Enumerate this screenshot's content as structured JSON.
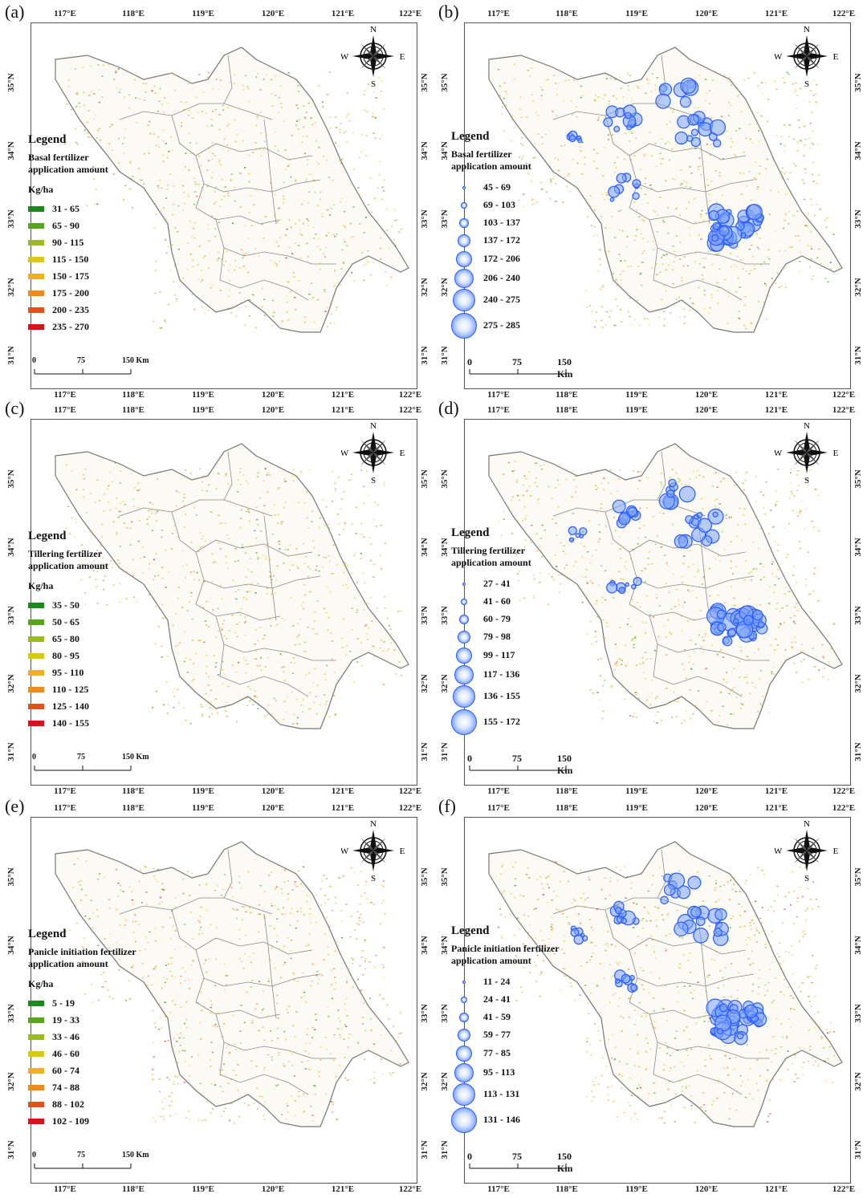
{
  "panels": [
    {
      "label": "(a)",
      "type": "raster",
      "legend_title": "Legend",
      "legend_subtitle": [
        "Basal fertilizer",
        "application amount"
      ],
      "unit": "Kg/ha",
      "classes": [
        "31 - 65",
        "65 - 90",
        "90 - 115",
        "115 - 150",
        "150 - 175",
        "175 - 200",
        "200 - 235",
        "235 - 270"
      ],
      "scale": {
        "zero": "0",
        "mid": "75",
        "end": "150 Km"
      }
    },
    {
      "label": "(b)",
      "type": "bubble",
      "legend_title": "Legend",
      "legend_subtitle": [
        "Basal fertilizer",
        "application amount"
      ],
      "classes": [
        "45 - 69",
        "69 - 103",
        "103 - 137",
        "137 - 172",
        "172 - 206",
        "206 - 240",
        "240 - 275",
        "275 - 285"
      ],
      "scale": {
        "zero": "0",
        "mid": "75",
        "end": "150 Km"
      }
    },
    {
      "label": "(c)",
      "type": "raster",
      "legend_title": "Legend",
      "legend_subtitle": [
        "Tillering fertilizer",
        "application amount"
      ],
      "unit": "Kg/ha",
      "classes": [
        "35 - 50",
        "50 - 65",
        "65 - 80",
        "80 - 95",
        "95 - 110",
        "110 - 125",
        "125 - 140",
        "140 - 155"
      ],
      "scale": {
        "zero": "0",
        "mid": "75",
        "end": "150 Km"
      }
    },
    {
      "label": "(d)",
      "type": "bubble",
      "legend_title": "Legend",
      "legend_subtitle": [
        "Tillering fertilizer",
        "application amount"
      ],
      "classes": [
        "27 - 41",
        "41 - 60",
        "60 - 79",
        "79 - 98",
        "99 - 117",
        "117 - 136",
        "136 - 155",
        "155 - 172"
      ],
      "scale": {
        "zero": "0",
        "mid": "75",
        "end": "150 Km"
      }
    },
    {
      "label": "(e)",
      "type": "raster",
      "legend_title": "Legend",
      "legend_subtitle": [
        "Panicle initiation fertilizer",
        "application amount"
      ],
      "unit": "Kg/ha",
      "classes": [
        "5 - 19",
        "19 - 33",
        "33 - 46",
        "46 - 60",
        "60 - 74",
        "74 - 88",
        "88 - 102",
        "102 - 109"
      ],
      "scale": {
        "zero": "0",
        "mid": "75",
        "end": "150 Km"
      }
    },
    {
      "label": "(f)",
      "type": "bubble",
      "legend_title": "Legend",
      "legend_subtitle": [
        "Panicle initiation fertilizer",
        "application amount"
      ],
      "classes": [
        "11 - 24",
        "24 - 41",
        "41 - 59",
        "59 - 77",
        "77 - 85",
        "95 - 113",
        "113 - 131",
        "131 - 146"
      ],
      "scale": {
        "zero": "0",
        "mid": "75",
        "end": "150 Km"
      }
    }
  ],
  "lon_labels": [
    "117°E",
    "118°E",
    "119°E",
    "120°E",
    "121°E",
    "122°E"
  ],
  "lat_labels": [
    "35°N",
    "34°N",
    "33°N",
    "32°N",
    "31°N"
  ],
  "compass": {
    "n": "N",
    "s": "S",
    "e": "E",
    "w": "W"
  },
  "colors": {
    "ramp": [
      "#1a8a1a",
      "#5aa51e",
      "#9abb1c",
      "#d8c81a",
      "#f0b01a",
      "#ee8a1e",
      "#e2531c",
      "#d4141a"
    ],
    "bubble": "#2a5cff",
    "boundary": "#777777"
  }
}
